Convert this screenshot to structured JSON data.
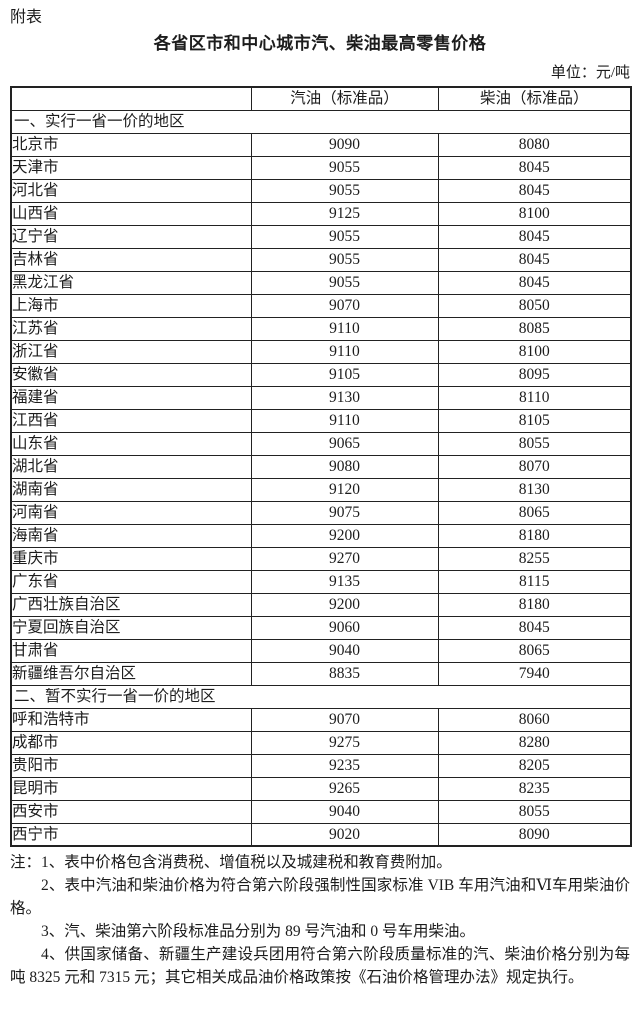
{
  "page": {
    "attachment_label": "附表",
    "title": "各省区市和中心城市汽、柴油最高零售价格",
    "unit_label": "单位：元/吨"
  },
  "table": {
    "columns": [
      "",
      "汽油（标准品）",
      "柴油（标准品）"
    ],
    "sections": [
      {
        "label": "一、实行一省一价的地区",
        "rows": [
          {
            "region": "北京市",
            "gasoline": "9090",
            "diesel": "8080"
          },
          {
            "region": "天津市",
            "gasoline": "9055",
            "diesel": "8045"
          },
          {
            "region": "河北省",
            "gasoline": "9055",
            "diesel": "8045"
          },
          {
            "region": "山西省",
            "gasoline": "9125",
            "diesel": "8100"
          },
          {
            "region": "辽宁省",
            "gasoline": "9055",
            "diesel": "8045"
          },
          {
            "region": "吉林省",
            "gasoline": "9055",
            "diesel": "8045"
          },
          {
            "region": "黑龙江省",
            "gasoline": "9055",
            "diesel": "8045"
          },
          {
            "region": "上海市",
            "gasoline": "9070",
            "diesel": "8050"
          },
          {
            "region": "江苏省",
            "gasoline": "9110",
            "diesel": "8085"
          },
          {
            "region": "浙江省",
            "gasoline": "9110",
            "diesel": "8100"
          },
          {
            "region": "安徽省",
            "gasoline": "9105",
            "diesel": "8095"
          },
          {
            "region": "福建省",
            "gasoline": "9130",
            "diesel": "8110"
          },
          {
            "region": "江西省",
            "gasoline": "9110",
            "diesel": "8105"
          },
          {
            "region": "山东省",
            "gasoline": "9065",
            "diesel": "8055"
          },
          {
            "region": "湖北省",
            "gasoline": "9080",
            "diesel": "8070"
          },
          {
            "region": "湖南省",
            "gasoline": "9120",
            "diesel": "8130"
          },
          {
            "region": "河南省",
            "gasoline": "9075",
            "diesel": "8065"
          },
          {
            "region": "海南省",
            "gasoline": "9200",
            "diesel": "8180"
          },
          {
            "region": "重庆市",
            "gasoline": "9270",
            "diesel": "8255"
          },
          {
            "region": "广东省",
            "gasoline": "9135",
            "diesel": "8115"
          },
          {
            "region": "广西壮族自治区",
            "gasoline": "9200",
            "diesel": "8180"
          },
          {
            "region": "宁夏回族自治区",
            "gasoline": "9060",
            "diesel": "8045"
          },
          {
            "region": "甘肃省",
            "gasoline": "9040",
            "diesel": "8065"
          },
          {
            "region": "新疆维吾尔自治区",
            "gasoline": "8835",
            "diesel": "7940"
          }
        ]
      },
      {
        "label": "二、暂不实行一省一价的地区",
        "rows": [
          {
            "region": "呼和浩特市",
            "gasoline": "9070",
            "diesel": "8060"
          },
          {
            "region": "成都市",
            "gasoline": "9275",
            "diesel": "8280"
          },
          {
            "region": "贵阳市",
            "gasoline": "9235",
            "diesel": "8205"
          },
          {
            "region": "昆明市",
            "gasoline": "9265",
            "diesel": "8235"
          },
          {
            "region": "西安市",
            "gasoline": "9040",
            "diesel": "8055"
          },
          {
            "region": "西宁市",
            "gasoline": "9020",
            "diesel": "8090"
          }
        ]
      }
    ]
  },
  "notes": [
    "注：1、表中价格包含消费税、增值税以及城建税和教育费附加。",
    "2、表中汽油和柴油价格为符合第六阶段强制性国家标准 VIB 车用汽油和Ⅵ车用柴油价格。",
    "3、汽、柴油第六阶段标准品分别为 89 号汽油和 0 号车用柴油。",
    "4、供国家储备、新疆生产建设兵团用符合第六阶段质量标准的汽、柴油价格分别为每吨 8325 元和 7315 元；其它相关成品油价格政策按《石油价格管理办法》规定执行。"
  ]
}
